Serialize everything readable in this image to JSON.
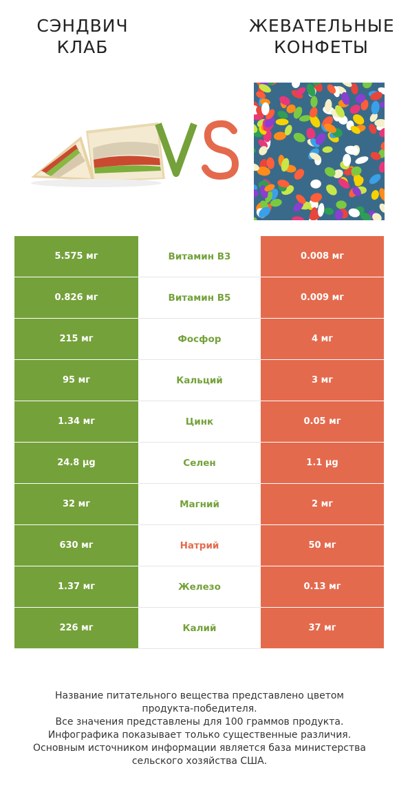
{
  "header": {
    "left_title_line1": "СЭНДВИЧ",
    "left_title_line2": "КЛАБ",
    "right_title_line1": "ЖЕВАТЕЛЬНЫЕ",
    "right_title_line2": "КОНФЕТЫ",
    "vs_label": "VS"
  },
  "colors": {
    "left": "#74a13a",
    "right": "#e46a4d"
  },
  "rows": [
    {
      "left": "5.575 мг",
      "name": "Витамин B3",
      "right": "0.008 мг",
      "winner": "left"
    },
    {
      "left": "0.826 мг",
      "name": "Витамин B5",
      "right": "0.009 мг",
      "winner": "left"
    },
    {
      "left": "215 мг",
      "name": "Фосфор",
      "right": "4 мг",
      "winner": "left"
    },
    {
      "left": "95 мг",
      "name": "Кальций",
      "right": "3 мг",
      "winner": "left"
    },
    {
      "left": "1.34 мг",
      "name": "Цинк",
      "right": "0.05 мг",
      "winner": "left"
    },
    {
      "left": "24.8 µg",
      "name": "Селен",
      "right": "1.1 µg",
      "winner": "left"
    },
    {
      "left": "32 мг",
      "name": "Магний",
      "right": "2 мг",
      "winner": "left"
    },
    {
      "left": "630 мг",
      "name": "Натрий",
      "right": "50 мг",
      "winner": "right"
    },
    {
      "left": "1.37 мг",
      "name": "Железо",
      "right": "0.13 мг",
      "winner": "left"
    },
    {
      "left": "226 мг",
      "name": "Калий",
      "right": "37 мг",
      "winner": "left"
    }
  ],
  "footer": {
    "line1": "Название питательного вещества представлено цветом",
    "line2": "продукта-победителя.",
    "line3": "Все значения представлены для 100 граммов продукта.",
    "line4": "Инфографика показывает только существенные различия.",
    "line5": "Основным источником информации является база министерства",
    "line6": "сельского хозяйства США."
  }
}
